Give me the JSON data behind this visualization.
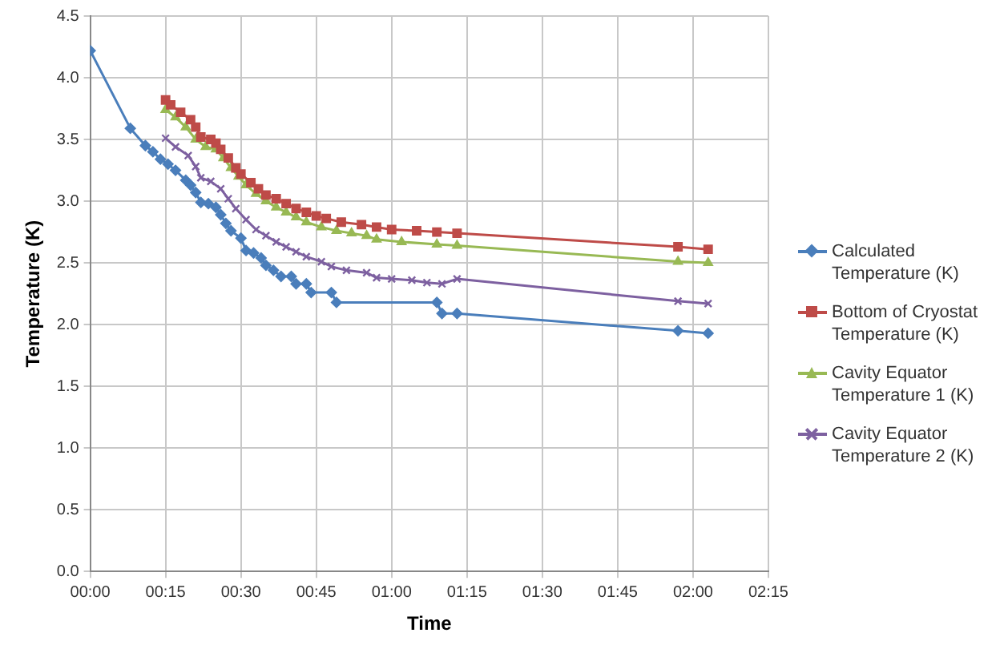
{
  "chart_data": {
    "type": "line",
    "xlabel": "Time",
    "ylabel": "Temperature (K)",
    "xlim": [
      0,
      2.25
    ],
    "xticks": [
      {
        "value": 0,
        "label": "00:00"
      },
      {
        "value": 0.25,
        "label": "00:15"
      },
      {
        "value": 0.5,
        "label": "00:30"
      },
      {
        "value": 0.75,
        "label": "00:45"
      },
      {
        "value": 1,
        "label": "01:00"
      },
      {
        "value": 1.25,
        "label": "01:15"
      },
      {
        "value": 1.5,
        "label": "01:30"
      },
      {
        "value": 1.75,
        "label": "01:45"
      },
      {
        "value": 2,
        "label": "02:00"
      },
      {
        "value": 2.25,
        "label": "02:15"
      }
    ],
    "ylim": [
      0,
      4.5
    ],
    "yticks": [
      {
        "value": 0,
        "label": "0.0"
      },
      {
        "value": 0.5,
        "label": "0.5"
      },
      {
        "value": 1,
        "label": "1.0"
      },
      {
        "value": 1.5,
        "label": "1.5"
      },
      {
        "value": 2,
        "label": "2.0"
      },
      {
        "value": 2.5,
        "label": "2.5"
      },
      {
        "value": 3,
        "label": "3.0"
      },
      {
        "value": 3.5,
        "label": "3.5"
      },
      {
        "value": 4,
        "label": "4.0"
      },
      {
        "value": 4.5,
        "label": "4.5"
      }
    ],
    "grid": true,
    "legend": "right",
    "series": [
      {
        "name": "Calculated Temperature (K)",
        "color": "#4a7ebb",
        "marker": "diamond",
        "x": [
          0,
          0.133,
          0.183,
          0.208,
          0.233,
          0.258,
          0.283,
          0.317,
          0.333,
          0.35,
          0.367,
          0.392,
          0.417,
          0.433,
          0.45,
          0.467,
          0.5,
          0.517,
          0.542,
          0.567,
          0.583,
          0.608,
          0.633,
          0.667,
          0.683,
          0.717,
          0.733,
          0.8,
          0.817,
          1.15,
          1.167,
          1.217,
          1.95,
          2.05
        ],
        "values": [
          4.22,
          3.59,
          3.45,
          3.4,
          3.34,
          3.3,
          3.25,
          3.17,
          3.13,
          3.07,
          2.99,
          2.98,
          2.95,
          2.89,
          2.82,
          2.76,
          2.7,
          2.6,
          2.58,
          2.54,
          2.48,
          2.44,
          2.39,
          2.39,
          2.33,
          2.33,
          2.26,
          2.26,
          2.18,
          2.18,
          2.09,
          2.09,
          1.95,
          1.93
        ]
      },
      {
        "name": "Bottom of Cryostat Temperature (K)",
        "color": "#be4b48",
        "marker": "square",
        "x": [
          0.25,
          0.267,
          0.3,
          0.333,
          0.35,
          0.367,
          0.4,
          0.417,
          0.433,
          0.458,
          0.483,
          0.5,
          0.533,
          0.558,
          0.583,
          0.617,
          0.65,
          0.683,
          0.717,
          0.75,
          0.783,
          0.833,
          0.9,
          0.95,
          1,
          1.083,
          1.15,
          1.217,
          1.95,
          2.05
        ],
        "values": [
          3.82,
          3.78,
          3.72,
          3.66,
          3.6,
          3.52,
          3.5,
          3.47,
          3.42,
          3.35,
          3.27,
          3.22,
          3.15,
          3.1,
          3.05,
          3.02,
          2.98,
          2.94,
          2.91,
          2.88,
          2.86,
          2.83,
          2.81,
          2.79,
          2.77,
          2.76,
          2.75,
          2.74,
          2.63,
          2.61
        ]
      },
      {
        "name": "Cavity Equator Temperature 1 (K)",
        "color": "#98b954",
        "marker": "triangle",
        "x": [
          0.25,
          0.283,
          0.317,
          0.35,
          0.383,
          0.417,
          0.442,
          0.467,
          0.492,
          0.517,
          0.55,
          0.583,
          0.617,
          0.65,
          0.683,
          0.717,
          0.767,
          0.817,
          0.867,
          0.917,
          0.95,
          1.033,
          1.15,
          1.217,
          1.95,
          2.05
        ],
        "values": [
          3.74,
          3.68,
          3.6,
          3.5,
          3.44,
          3.42,
          3.35,
          3.27,
          3.2,
          3.13,
          3.06,
          3,
          2.95,
          2.91,
          2.87,
          2.83,
          2.79,
          2.76,
          2.74,
          2.72,
          2.69,
          2.67,
          2.65,
          2.64,
          2.51,
          2.5
        ]
      },
      {
        "name": "Cavity Equator Temperature 2 (K)",
        "color": "#7d60a0",
        "marker": "cross",
        "x": [
          0.25,
          0.283,
          0.325,
          0.35,
          0.367,
          0.4,
          0.433,
          0.458,
          0.483,
          0.517,
          0.55,
          0.583,
          0.617,
          0.65,
          0.683,
          0.717,
          0.767,
          0.8,
          0.85,
          0.917,
          0.95,
          1,
          1.067,
          1.117,
          1.167,
          1.217,
          1.95,
          2.05
        ],
        "values": [
          3.51,
          3.44,
          3.37,
          3.28,
          3.19,
          3.16,
          3.1,
          3.02,
          2.94,
          2.85,
          2.77,
          2.72,
          2.67,
          2.63,
          2.59,
          2.55,
          2.51,
          2.47,
          2.44,
          2.42,
          2.38,
          2.37,
          2.36,
          2.34,
          2.33,
          2.37,
          2.19,
          2.17
        ]
      }
    ]
  }
}
